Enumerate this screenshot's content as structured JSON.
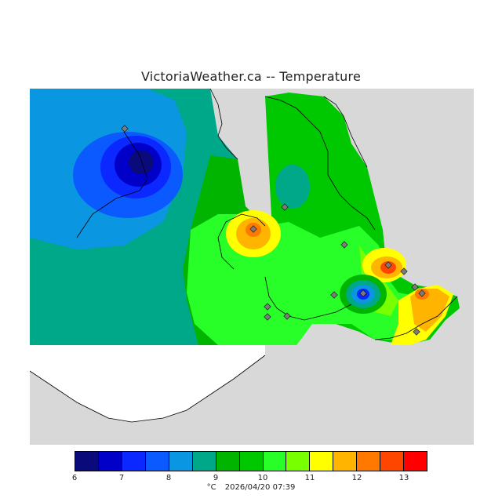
{
  "title": "VictoriaWeather.ca -- Temperature",
  "legend": {
    "tick_labels": [
      "6",
      "7",
      "8",
      "9",
      "10",
      "11",
      "12",
      "13"
    ],
    "colors": [
      "#0a0a7a",
      "#0000c8",
      "#0a28ff",
      "#0a5aff",
      "#0a96e0",
      "#00a88a",
      "#00b400",
      "#00c800",
      "#28ff28",
      "#78ff00",
      "#ffff00",
      "#ffb400",
      "#ff7800",
      "#ff4600",
      "#ff0000"
    ]
  },
  "footer": {
    "unit": "°C",
    "timestamp": "2026/04/20 07:39"
  },
  "map_colors": {
    "land_gray": "#d8d8d8",
    "blank": "#ffffff",
    "coast": "#000000",
    "station": "#7a7a7a"
  }
}
